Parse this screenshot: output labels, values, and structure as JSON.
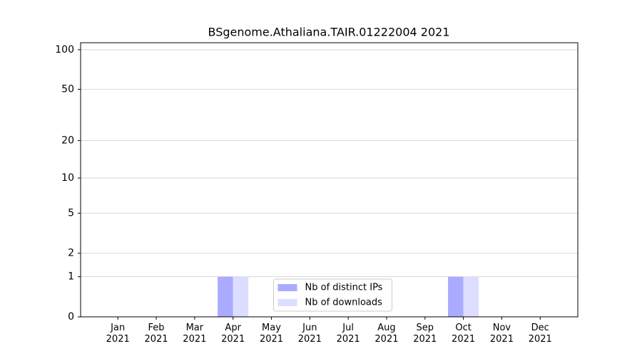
{
  "chart_data": {
    "type": "bar",
    "title": "BSgenome.Athaliana.TAIR.01222004 2021",
    "categories": [
      "Jan 2021",
      "Feb 2021",
      "Mar 2021",
      "Apr 2021",
      "May 2021",
      "Jun 2021",
      "Jul 2021",
      "Aug 2021",
      "Sep 2021",
      "Oct 2021",
      "Nov 2021",
      "Dec 2021"
    ],
    "series": [
      {
        "name": "Nb of distinct IPs",
        "color": "#aaaaff",
        "values": [
          0,
          0,
          0,
          1,
          0,
          0,
          0,
          0,
          0,
          1,
          0,
          0
        ]
      },
      {
        "name": "Nb of downloads",
        "color": "#ddddff",
        "values": [
          0,
          0,
          0,
          1,
          0,
          0,
          0,
          0,
          0,
          1,
          0,
          0
        ]
      }
    ],
    "ylim": [
      0,
      113
    ],
    "yticks": [
      0,
      1,
      2,
      5,
      10,
      20,
      50,
      100
    ],
    "yscale": "log1p",
    "grid": true,
    "legend": "lower center"
  }
}
